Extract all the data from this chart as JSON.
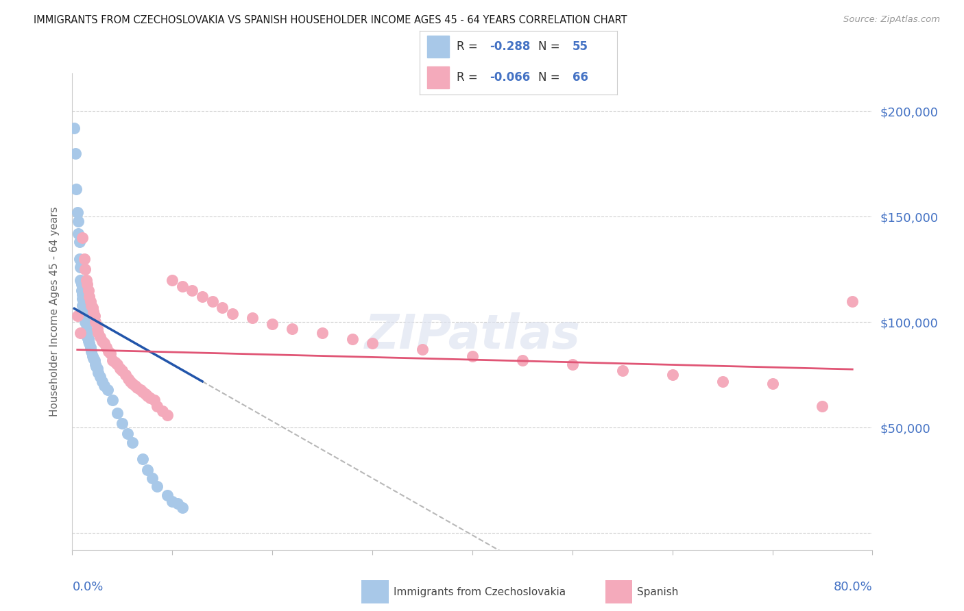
{
  "title": "IMMIGRANTS FROM CZECHOSLOVAKIA VS SPANISH HOUSEHOLDER INCOME AGES 45 - 64 YEARS CORRELATION CHART",
  "source": "Source: ZipAtlas.com",
  "ylabel": "Householder Income Ages 45 - 64 years",
  "yticks": [
    0,
    50000,
    100000,
    150000,
    200000
  ],
  "ytick_labels": [
    "",
    "$50,000",
    "$100,000",
    "$150,000",
    "$200,000"
  ],
  "xmin": 0.0,
  "xmax": 0.8,
  "ymin": -8000,
  "ymax": 218000,
  "r1": "-0.288",
  "n1": "55",
  "r2": "-0.066",
  "n2": "66",
  "blue_color": "#a8c8e8",
  "pink_color": "#f4aabb",
  "blue_line_color": "#2255aa",
  "pink_line_color": "#e05575",
  "gray_dash_color": "#b8b8b8",
  "title_color": "#1a1a1a",
  "axis_label_color": "#4472c4",
  "legend1_label": "Immigrants from Czechoslovakia",
  "legend2_label": "Spanish",
  "czecho_x": [
    0.002,
    0.003,
    0.004,
    0.005,
    0.006,
    0.006,
    0.007,
    0.007,
    0.008,
    0.008,
    0.009,
    0.009,
    0.01,
    0.01,
    0.01,
    0.011,
    0.011,
    0.012,
    0.012,
    0.013,
    0.013,
    0.014,
    0.014,
    0.015,
    0.015,
    0.015,
    0.016,
    0.016,
    0.017,
    0.018,
    0.019,
    0.02,
    0.021,
    0.022,
    0.023,
    0.024,
    0.025,
    0.026,
    0.028,
    0.03,
    0.032,
    0.035,
    0.04,
    0.045,
    0.05,
    0.055,
    0.06,
    0.07,
    0.075,
    0.08,
    0.085,
    0.095,
    0.1,
    0.105,
    0.11
  ],
  "czecho_y": [
    192000,
    180000,
    163000,
    152000,
    148000,
    142000,
    138000,
    130000,
    126000,
    120000,
    118000,
    115000,
    113000,
    111000,
    108000,
    107000,
    106000,
    105000,
    103000,
    102000,
    100000,
    99000,
    97000,
    96000,
    95000,
    93000,
    92000,
    91000,
    90000,
    88000,
    86000,
    84000,
    83000,
    82000,
    80000,
    79000,
    78000,
    76000,
    74000,
    72000,
    70000,
    68000,
    63000,
    57000,
    52000,
    47000,
    43000,
    35000,
    30000,
    26000,
    22000,
    18000,
    15000,
    14000,
    12000
  ],
  "spanish_x": [
    0.005,
    0.008,
    0.01,
    0.012,
    0.013,
    0.014,
    0.015,
    0.016,
    0.017,
    0.018,
    0.019,
    0.02,
    0.021,
    0.022,
    0.023,
    0.025,
    0.026,
    0.028,
    0.03,
    0.032,
    0.034,
    0.036,
    0.038,
    0.04,
    0.043,
    0.045,
    0.048,
    0.05,
    0.053,
    0.056,
    0.058,
    0.06,
    0.063,
    0.065,
    0.068,
    0.07,
    0.073,
    0.075,
    0.078,
    0.082,
    0.085,
    0.09,
    0.095,
    0.1,
    0.11,
    0.12,
    0.13,
    0.14,
    0.15,
    0.16,
    0.18,
    0.2,
    0.22,
    0.25,
    0.28,
    0.3,
    0.35,
    0.4,
    0.45,
    0.5,
    0.55,
    0.6,
    0.65,
    0.7,
    0.75,
    0.78
  ],
  "spanish_y": [
    103000,
    95000,
    140000,
    130000,
    125000,
    120000,
    118000,
    115000,
    112000,
    110000,
    108000,
    107000,
    105000,
    103000,
    100000,
    97000,
    95000,
    93000,
    91000,
    90000,
    88000,
    86000,
    85000,
    82000,
    81000,
    80000,
    78000,
    77000,
    75000,
    73000,
    72000,
    71000,
    70000,
    69000,
    68000,
    67000,
    66000,
    65000,
    64000,
    63000,
    60000,
    58000,
    56000,
    120000,
    117000,
    115000,
    112000,
    110000,
    107000,
    104000,
    102000,
    99000,
    97000,
    95000,
    92000,
    90000,
    87000,
    84000,
    82000,
    80000,
    77000,
    75000,
    72000,
    71000,
    60000,
    110000
  ]
}
